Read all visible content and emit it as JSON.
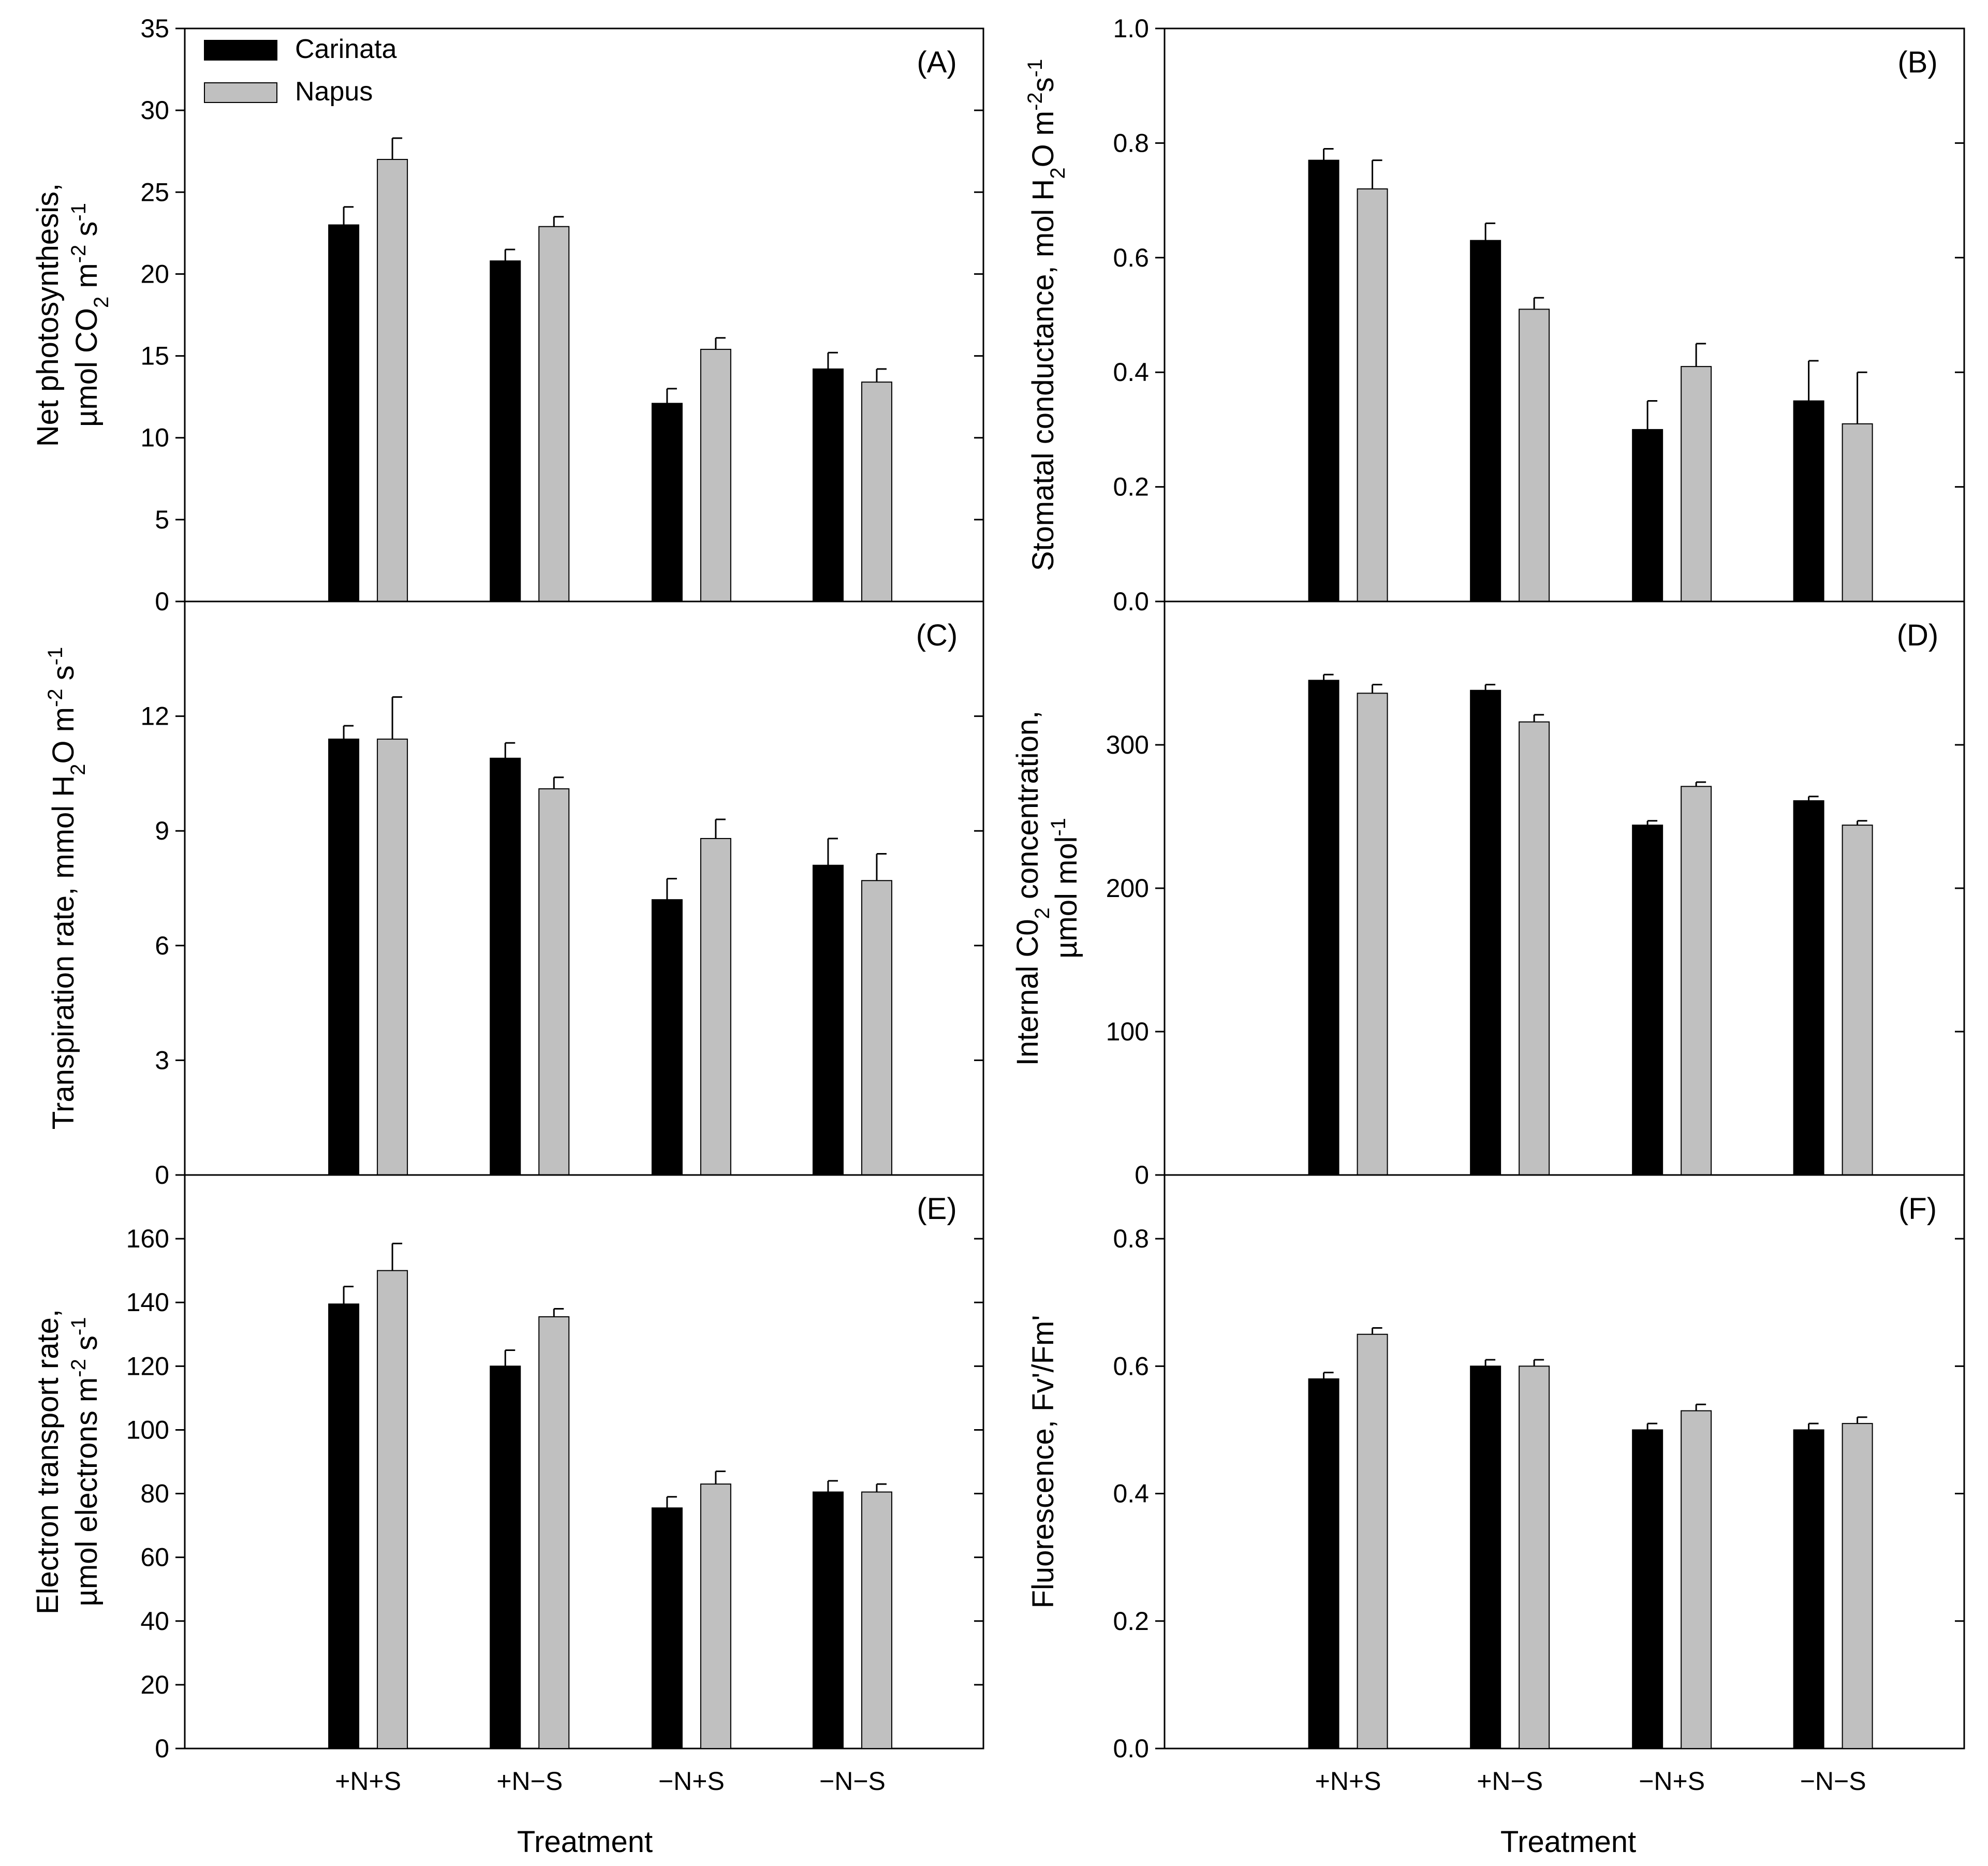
{
  "series_names": [
    "Carinata",
    "Napus"
  ],
  "colors": {
    "carinata": "#000000",
    "napus": "#c0c0c0",
    "axis": "#000000"
  },
  "legend": [
    {
      "name": "Carinata",
      "color": "#000000"
    },
    {
      "name": "Napus",
      "color": "#c0c0c0"
    }
  ],
  "xlabel": "Treatment",
  "chart_data": [
    {
      "id": "A",
      "panel": "(A)",
      "type": "bar",
      "ylabel_lines": [
        [
          {
            "t": "Net photosynthesis,"
          }
        ],
        [
          {
            "t": "µmol CO"
          },
          {
            "t": "2",
            "s": "sub"
          },
          {
            "t": " m"
          },
          {
            "t": "-2",
            "s": "sup"
          },
          {
            "t": " s"
          },
          {
            "t": "-1",
            "s": "sup"
          }
        ]
      ],
      "categories": [
        "+N+S",
        "+N−S",
        "−N+S",
        "−N−S"
      ],
      "ylim": [
        0,
        35
      ],
      "yticks": [
        0,
        5,
        10,
        15,
        20,
        25,
        30,
        35
      ],
      "tick_decimals": 0,
      "series": [
        {
          "name": "Carinata",
          "values": [
            23.0,
            20.8,
            12.1,
            14.2
          ],
          "errors": [
            1.1,
            0.7,
            0.9,
            1.0
          ]
        },
        {
          "name": "Napus",
          "values": [
            27.0,
            22.9,
            15.4,
            13.4
          ],
          "errors": [
            1.3,
            0.6,
            0.7,
            0.8
          ]
        }
      ]
    },
    {
      "id": "B",
      "panel": "(B)",
      "type": "bar",
      "ylabel_lines": [
        [
          {
            "t": "Stomatal conductance, mol H"
          },
          {
            "t": "2",
            "s": "sub"
          },
          {
            "t": "O m"
          },
          {
            "t": "-2",
            "s": "sup"
          },
          {
            "t": "s"
          },
          {
            "t": "-1",
            "s": "sup"
          }
        ]
      ],
      "categories": [
        "+N+S",
        "+N−S",
        "−N+S",
        "−N−S"
      ],
      "ylim": [
        0,
        1.0
      ],
      "yticks": [
        0,
        0.2,
        0.4,
        0.6,
        0.8,
        1.0
      ],
      "tick_decimals": 1,
      "series": [
        {
          "name": "Carinata",
          "values": [
            0.77,
            0.63,
            0.3,
            0.35
          ],
          "errors": [
            0.02,
            0.03,
            0.05,
            0.07
          ]
        },
        {
          "name": "Napus",
          "values": [
            0.72,
            0.51,
            0.41,
            0.31
          ],
          "errors": [
            0.05,
            0.02,
            0.04,
            0.09
          ]
        }
      ]
    },
    {
      "id": "C",
      "panel": "(C)",
      "type": "bar",
      "ylabel_lines": [
        [
          {
            "t": "Transpiration rate, mmol H"
          },
          {
            "t": "2",
            "s": "sub"
          },
          {
            "t": "O m"
          },
          {
            "t": "-2",
            "s": "sup"
          },
          {
            "t": " s"
          },
          {
            "t": "-1",
            "s": "sup"
          }
        ]
      ],
      "categories": [
        "+N+S",
        "+N−S",
        "−N+S",
        "−N−S"
      ],
      "ylim": [
        0,
        15
      ],
      "yticks": [
        0,
        3,
        6,
        9,
        12
      ],
      "tick_decimals": 0,
      "series": [
        {
          "name": "Carinata",
          "values": [
            11.4,
            10.9,
            7.2,
            8.1
          ],
          "errors": [
            0.35,
            0.4,
            0.55,
            0.7
          ]
        },
        {
          "name": "Napus",
          "values": [
            11.4,
            10.1,
            8.8,
            7.7
          ],
          "errors": [
            1.1,
            0.3,
            0.5,
            0.7
          ]
        }
      ]
    },
    {
      "id": "D",
      "panel": "(D)",
      "type": "bar",
      "ylabel_lines": [
        [
          {
            "t": "Internal C0"
          },
          {
            "t": "2",
            "s": "sub"
          },
          {
            "t": " concentration,"
          }
        ],
        [
          {
            "t": "µmol mol"
          },
          {
            "t": "-1",
            "s": "sup"
          }
        ]
      ],
      "categories": [
        "+N+S",
        "+N−S",
        "−N+S",
        "−N−S"
      ],
      "ylim": [
        0,
        400
      ],
      "yticks": [
        0,
        100,
        200,
        300
      ],
      "tick_decimals": 0,
      "series": [
        {
          "name": "Carinata",
          "values": [
            345,
            338,
            244,
            261
          ],
          "errors": [
            4,
            4,
            3,
            3
          ]
        },
        {
          "name": "Napus",
          "values": [
            336,
            316,
            271,
            244
          ],
          "errors": [
            6,
            5,
            3,
            3
          ]
        }
      ]
    },
    {
      "id": "E",
      "panel": "(E)",
      "type": "bar",
      "ylabel_lines": [
        [
          {
            "t": "Electron transport rate,"
          }
        ],
        [
          {
            "t": "µmol electrons m"
          },
          {
            "t": "-2",
            "s": "sup"
          },
          {
            "t": " s"
          },
          {
            "t": "-1",
            "s": "sup"
          }
        ]
      ],
      "categories": [
        "+N+S",
        "+N−S",
        "−N+S",
        "−N−S"
      ],
      "ylim": [
        0,
        180
      ],
      "yticks": [
        0,
        20,
        40,
        60,
        80,
        100,
        120,
        140,
        160
      ],
      "tick_decimals": 0,
      "series": [
        {
          "name": "Carinata",
          "values": [
            139.5,
            120,
            75.5,
            80.5
          ],
          "errors": [
            5.5,
            5,
            3.5,
            3.5
          ]
        },
        {
          "name": "Napus",
          "values": [
            150,
            135.5,
            83,
            80.5
          ],
          "errors": [
            8.5,
            2.5,
            4,
            2.5
          ]
        }
      ]
    },
    {
      "id": "F",
      "panel": "(F)",
      "type": "bar",
      "ylabel_lines": [
        [
          {
            "t": "Fluorescence, Fv'/Fm'"
          }
        ]
      ],
      "categories": [
        "+N+S",
        "+N−S",
        "−N+S",
        "−N−S"
      ],
      "ylim": [
        0,
        0.9
      ],
      "yticks": [
        0,
        0.2,
        0.4,
        0.6,
        0.8
      ],
      "tick_decimals": 1,
      "series": [
        {
          "name": "Carinata",
          "values": [
            0.58,
            0.6,
            0.5,
            0.5
          ],
          "errors": [
            0.01,
            0.01,
            0.01,
            0.01
          ]
        },
        {
          "name": "Napus",
          "values": [
            0.65,
            0.6,
            0.53,
            0.51
          ],
          "errors": [
            0.01,
            0.01,
            0.01,
            0.01
          ]
        }
      ]
    }
  ]
}
